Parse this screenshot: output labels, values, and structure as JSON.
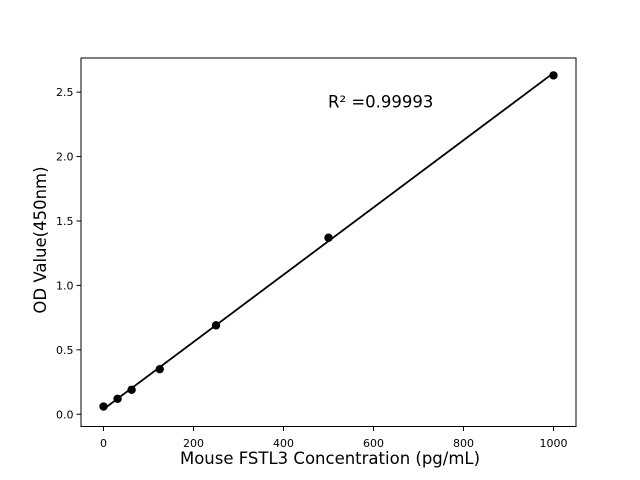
{
  "page": {
    "background": "#ffffff"
  },
  "chart_data": {
    "type": "scatter",
    "title": "",
    "xlabel": "Mouse FSTL3 Concentration (pg/mL)",
    "ylabel": "OD Value(450nm)",
    "annotation": "R² =0.99993",
    "x": [
      0,
      31.25,
      62.5,
      125,
      250,
      500,
      1000
    ],
    "y": [
      0.06,
      0.12,
      0.19,
      0.35,
      0.69,
      1.37,
      2.63
    ],
    "fit_line": {
      "slope": 0.00261,
      "intercept": 0.039,
      "r_squared": 0.99993
    },
    "xlim": [
      -50,
      1050
    ],
    "ylim": [
      -0.095,
      2.765
    ],
    "x_ticks": [
      0,
      200,
      400,
      600,
      800,
      1000
    ],
    "x_tick_labels": [
      "0",
      "200",
      "400",
      "600",
      "800",
      "1000"
    ],
    "y_ticks": [
      0,
      0.5,
      1.0,
      1.5,
      2.0,
      2.5
    ],
    "y_tick_labels": [
      "0.0",
      "0.5",
      "1.0",
      "1.5",
      "2.0",
      "2.5"
    ],
    "grid": false,
    "legend": null,
    "marker": {
      "color": "#000000",
      "size": 8.4
    },
    "line": {
      "color": "#000000",
      "width": 1.8
    },
    "axis_color": "#000000",
    "text_color": "#000000"
  }
}
